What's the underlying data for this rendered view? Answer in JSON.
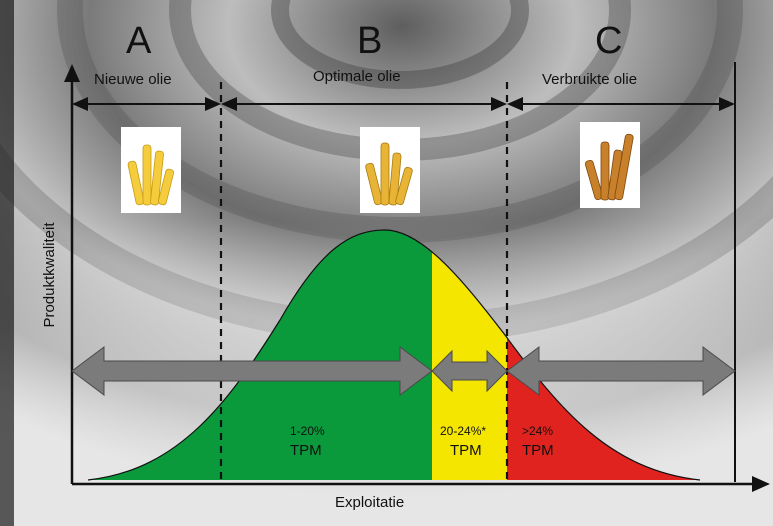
{
  "sections": [
    {
      "letter": "A",
      "label": "Nieuwe olie"
    },
    {
      "letter": "B",
      "label": "Optimale olie"
    },
    {
      "letter": "C",
      "label": "Verbruikte olie"
    }
  ],
  "axes": {
    "y": "Produktkwaliteit",
    "x": "Exploitatie"
  },
  "tpm_ranges": [
    {
      "range": "1-20%",
      "unit": "TPM",
      "color": "#0b9a3b"
    },
    {
      "range": "20-24%*",
      "unit": "TPM",
      "color": "#f5e600"
    },
    {
      "range": ">24%",
      "unit": "TPM",
      "color": "#e0231e"
    }
  ],
  "colors": {
    "line": "#0a0a0a",
    "arrow": "#7b7b7b",
    "curve_border": "#111111"
  }
}
